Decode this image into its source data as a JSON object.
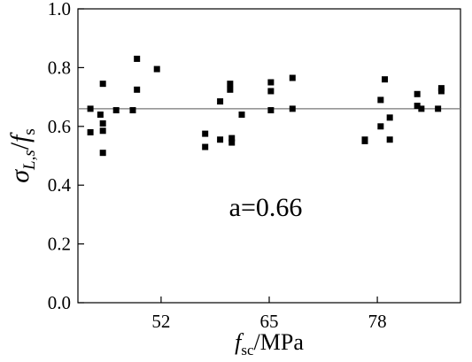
{
  "chart_data": {
    "type": "scatter",
    "title": "",
    "xlabel": {
      "main": "f",
      "sub": "sc",
      "rest": "/MPa"
    },
    "ylabel": {
      "sigma": "σ",
      "sub": "L,s",
      "slash": "/",
      "f": "f",
      "fsub": "s"
    },
    "xlim": [
      42,
      88
    ],
    "ylim": [
      0.0,
      1.0
    ],
    "x_ticks": [
      52,
      65,
      78
    ],
    "x_ticklabels": [
      "52",
      "65",
      "78"
    ],
    "y_ticks": [
      0.0,
      0.2,
      0.4,
      0.6,
      0.8,
      1.0
    ],
    "y_ticklabels": [
      "0.0",
      "0.2",
      "0.4",
      "0.6",
      "0.8",
      "1.0"
    ],
    "reference_line": {
      "y": 0.66,
      "color": "#777777"
    },
    "annotation": "a=0.66",
    "grid": false,
    "marker_color": "#000000",
    "points": [
      {
        "x": 43.5,
        "y": 0.66
      },
      {
        "x": 43.5,
        "y": 0.58
      },
      {
        "x": 44.7,
        "y": 0.64
      },
      {
        "x": 45.0,
        "y": 0.745
      },
      {
        "x": 45.0,
        "y": 0.61
      },
      {
        "x": 45.0,
        "y": 0.585
      },
      {
        "x": 45.0,
        "y": 0.51
      },
      {
        "x": 46.6,
        "y": 0.655
      },
      {
        "x": 48.6,
        "y": 0.655
      },
      {
        "x": 49.1,
        "y": 0.83
      },
      {
        "x": 49.1,
        "y": 0.725
      },
      {
        "x": 51.5,
        "y": 0.795
      },
      {
        "x": 57.3,
        "y": 0.575
      },
      {
        "x": 57.3,
        "y": 0.53
      },
      {
        "x": 59.1,
        "y": 0.685
      },
      {
        "x": 59.1,
        "y": 0.555
      },
      {
        "x": 60.3,
        "y": 0.745
      },
      {
        "x": 60.3,
        "y": 0.725
      },
      {
        "x": 60.5,
        "y": 0.56
      },
      {
        "x": 60.5,
        "y": 0.545
      },
      {
        "x": 61.7,
        "y": 0.64
      },
      {
        "x": 65.2,
        "y": 0.75
      },
      {
        "x": 65.2,
        "y": 0.72
      },
      {
        "x": 65.2,
        "y": 0.655
      },
      {
        "x": 67.8,
        "y": 0.765
      },
      {
        "x": 67.8,
        "y": 0.66
      },
      {
        "x": 76.5,
        "y": 0.555
      },
      {
        "x": 76.5,
        "y": 0.55
      },
      {
        "x": 78.4,
        "y": 0.69
      },
      {
        "x": 78.4,
        "y": 0.6
      },
      {
        "x": 78.9,
        "y": 0.76
      },
      {
        "x": 79.5,
        "y": 0.63
      },
      {
        "x": 79.5,
        "y": 0.555
      },
      {
        "x": 82.8,
        "y": 0.71
      },
      {
        "x": 82.8,
        "y": 0.67
      },
      {
        "x": 83.3,
        "y": 0.66
      },
      {
        "x": 85.3,
        "y": 0.66
      },
      {
        "x": 85.7,
        "y": 0.73
      },
      {
        "x": 85.7,
        "y": 0.72
      }
    ]
  }
}
